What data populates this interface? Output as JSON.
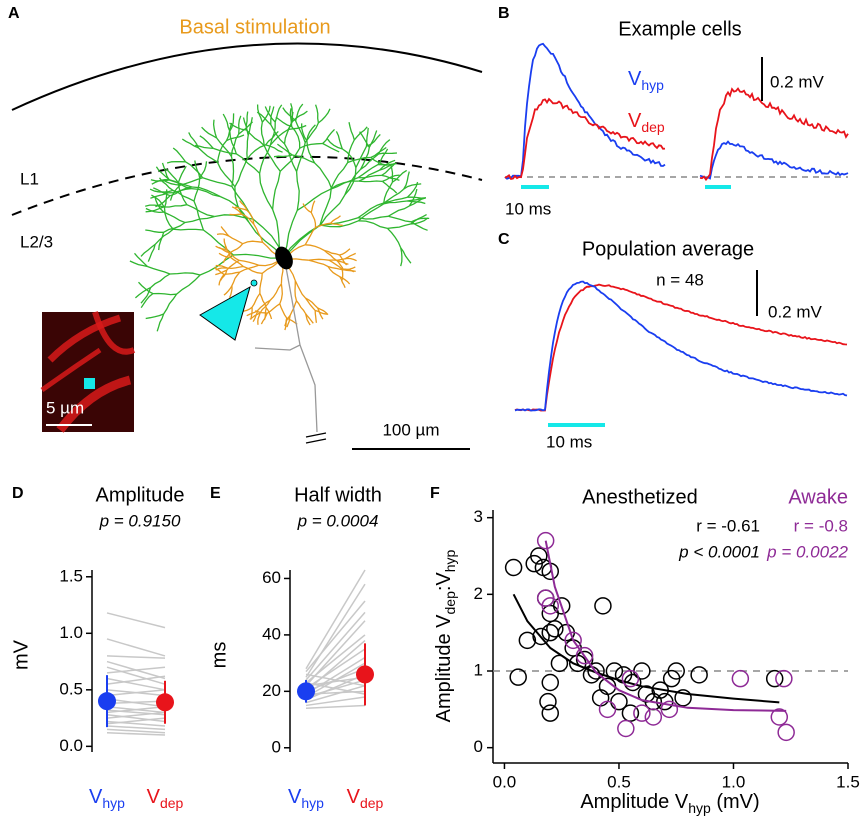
{
  "figure": {
    "A": {
      "label": "A",
      "title": "Basal stimulation",
      "layers": [
        "L1",
        "L2/3"
      ],
      "inset_scale": "5 µm",
      "scale": "100 µm"
    },
    "B": {
      "label": "B",
      "title": "Example cells",
      "legend": [
        {
          "parts": [
            {
              "t": "V"
            },
            {
              "sub": "hyp"
            }
          ],
          "color": "#1a3ef0"
        },
        {
          "parts": [
            {
              "t": "V"
            },
            {
              "sub": "dep"
            }
          ],
          "color": "#e8141b"
        }
      ],
      "scale_v": "0.2 mV",
      "scale_t": "10 ms"
    },
    "C": {
      "label": "C",
      "title": "Population average",
      "n": "n = 48",
      "scale_v": "0.2 mV",
      "scale_t": "10 ms"
    }
  },
  "chart_data": [
    {
      "type": "paired",
      "label": "D",
      "title": "Amplitude",
      "subtitle": "p = 0.9150",
      "ylabel": "mV",
      "categories": [
        [
          {
            "t": "V"
          },
          {
            "sub": "hyp"
          }
        ],
        [
          {
            "t": "V"
          },
          {
            "sub": "dep"
          }
        ]
      ],
      "colors": [
        "#1a3ef0",
        "#e8141b"
      ],
      "pair_color": "#c8c8c8",
      "means": [
        0.4,
        0.39
      ],
      "errors": [
        0.23,
        0.19
      ],
      "pairs": {
        "first": [
          1.18,
          0.95,
          0.8,
          0.75,
          0.7,
          0.65,
          0.6,
          0.55,
          0.5,
          0.45,
          0.42,
          0.38,
          0.35,
          0.32,
          0.3,
          0.28,
          0.25,
          0.22,
          0.2,
          0.18,
          0.15,
          0.12
        ],
        "second": [
          1.05,
          0.8,
          0.78,
          0.6,
          0.55,
          0.7,
          0.5,
          0.62,
          0.45,
          0.5,
          0.35,
          0.4,
          0.3,
          0.28,
          0.35,
          0.22,
          0.3,
          0.18,
          0.25,
          0.15,
          0.12,
          0.1
        ]
      },
      "ylim": [
        -0.05,
        1.56
      ],
      "yticks": [
        {
          "value": 0,
          "label": "0.0"
        },
        0.5,
        {
          "value": 1,
          "label": "1.0"
        },
        1.5
      ]
    },
    {
      "type": "paired",
      "label": "E",
      "title": "Half width",
      "subtitle": "p = 0.0004",
      "ylabel": "ms",
      "categories": [
        [
          {
            "t": "V"
          },
          {
            "sub": "hyp"
          }
        ],
        [
          {
            "t": "V"
          },
          {
            "sub": "dep"
          }
        ]
      ],
      "colors": [
        "#1a3ef0",
        "#e8141b"
      ],
      "pair_color": "#c8c8c8",
      "means": [
        20,
        26
      ],
      "errors": [
        4,
        11
      ],
      "pairs": {
        "first": [
          28,
          25,
          27,
          24,
          22,
          23,
          20,
          21,
          19,
          18,
          20,
          17,
          22,
          16,
          19,
          15,
          23,
          26,
          14,
          18
        ],
        "second": [
          63,
          58,
          52,
          48,
          45,
          40,
          38,
          35,
          32,
          30,
          28,
          26,
          25,
          22,
          20,
          18,
          19,
          22,
          15,
          24
        ]
      },
      "ylim": [
        -1.5,
        63
      ],
      "yticks": [
        0,
        20,
        40,
        60
      ]
    },
    {
      "type": "scatter",
      "label": "F",
      "xlabel": [
        {
          "t": "Amplitude V"
        },
        {
          "sub": "hyp"
        },
        {
          "t": " (mV)"
        }
      ],
      "ylabel": [
        {
          "t": "Amplitude V"
        },
        {
          "sub": "dep"
        },
        {
          "t": ":V"
        },
        {
          "sub": "hyp"
        }
      ],
      "xlim": [
        -0.05,
        1.5
      ],
      "ylim": [
        -0.2,
        3.1
      ],
      "xticks": [
        {
          "value": 0,
          "label": "0.0"
        },
        0.5,
        {
          "value": 1,
          "label": "1.0"
        },
        1.5
      ],
      "yticks": [
        0,
        1,
        2,
        3
      ],
      "hline": 1,
      "series": [
        {
          "name": "Anesthetized",
          "color": "#000000",
          "annotations": [
            "r = -0.61",
            "p < 0.0001"
          ],
          "x": [
            0.04,
            0.06,
            0.13,
            0.15,
            0.17,
            0.2,
            0.18,
            0.2,
            0.1,
            0.16,
            0.2,
            0.22,
            0.25,
            0.27,
            0.3,
            0.32,
            0.2,
            0.19,
            0.2,
            0.24,
            0.35,
            0.38,
            0.4,
            0.43,
            0.45,
            0.48,
            0.52,
            0.5,
            0.55,
            0.6,
            0.62,
            0.65,
            0.68,
            0.7,
            0.73,
            0.75,
            0.78,
            0.85,
            1.18,
            0.42,
            0.56
          ],
          "y": [
            2.35,
            0.92,
            2.4,
            2.5,
            2.35,
            2.3,
            1.95,
            1.75,
            1.4,
            1.45,
            1.5,
            1.55,
            1.85,
            1.5,
            1.3,
            1.1,
            0.85,
            0.6,
            0.45,
            1.1,
            1.15,
            0.95,
            1.0,
            1.85,
            0.8,
            1.0,
            0.95,
            0.6,
            0.45,
            1.0,
            0.7,
            0.6,
            0.75,
            0.6,
            0.9,
            1.0,
            0.65,
            0.95,
            0.9,
            0.65,
            0.85
          ],
          "fit_x": [
            0.04,
            0.1,
            0.2,
            0.3,
            0.4,
            0.5,
            0.6,
            0.8,
            1.0,
            1.2
          ],
          "fit_y": [
            2.0,
            1.65,
            1.3,
            1.1,
            0.98,
            0.88,
            0.8,
            0.7,
            0.64,
            0.59
          ]
        },
        {
          "name": "Awake",
          "color": "#8e2a96",
          "annotations": [
            "r = -0.8",
            "p = 0.0022"
          ],
          "x": [
            0.18,
            0.18,
            0.2,
            0.3,
            0.55,
            0.53,
            0.6,
            0.65,
            0.72,
            1.03,
            1.22,
            1.2,
            1.23,
            0.35,
            0.45
          ],
          "y": [
            2.7,
            1.95,
            1.85,
            1.4,
            0.9,
            0.25,
            0.45,
            0.4,
            0.5,
            0.9,
            0.9,
            0.4,
            0.2,
            1.2,
            0.5
          ],
          "fit_x": [
            0.18,
            0.22,
            0.3,
            0.4,
            0.5,
            0.6,
            0.8,
            1.0,
            1.23
          ],
          "fit_y": [
            2.7,
            2.1,
            1.4,
            0.98,
            0.75,
            0.62,
            0.52,
            0.49,
            0.48
          ]
        }
      ]
    }
  ]
}
